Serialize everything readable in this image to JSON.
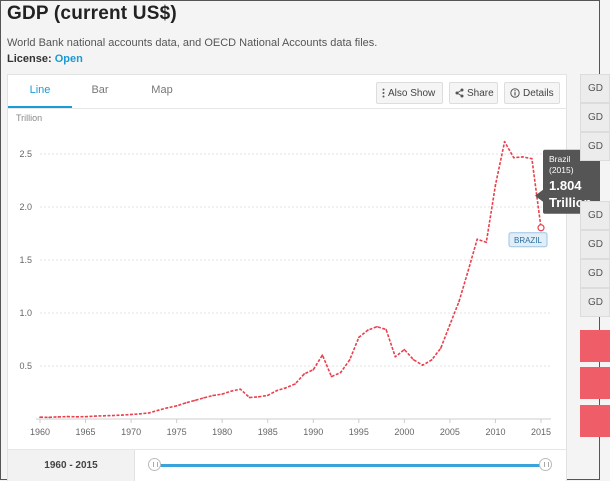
{
  "header": {
    "title": "GDP (current US$)",
    "subtitle": "World Bank national accounts data, and OECD National Accounts data files.",
    "license_label": "License: ",
    "license_value": "Open"
  },
  "tabs": [
    {
      "label": "Line",
      "active": true
    },
    {
      "label": "Bar",
      "active": false
    },
    {
      "label": "Map",
      "active": false
    }
  ],
  "toolbar": {
    "also_show": "Also Show",
    "share": "Share",
    "details": "Details"
  },
  "right_panel": {
    "items": [
      "GD",
      "GD",
      "GD",
      "GD",
      "GD",
      "GD",
      "GD"
    ]
  },
  "range": {
    "label": "1960 - 2015"
  },
  "chart_data": {
    "type": "line",
    "ylabel": "Trillion",
    "xlim": [
      1960,
      2015
    ],
    "ylim": [
      0,
      2.5
    ],
    "x_ticks": [
      1960,
      1965,
      1970,
      1975,
      1980,
      1985,
      1990,
      1995,
      2000,
      2005,
      2010,
      2015
    ],
    "y_ticks": [
      0.5,
      1.0,
      1.5,
      2.0,
      2.5
    ],
    "y_tick_labels": [
      "0.5",
      "1.0",
      "1.5",
      "2.0",
      "2.5"
    ],
    "grid": true,
    "line_color": "#e8414e",
    "series": [
      {
        "name": "BRAZIL",
        "x": [
          1960,
          1961,
          1962,
          1963,
          1964,
          1965,
          1966,
          1967,
          1968,
          1969,
          1970,
          1971,
          1972,
          1973,
          1974,
          1975,
          1976,
          1977,
          1978,
          1979,
          1980,
          1981,
          1982,
          1983,
          1984,
          1985,
          1986,
          1987,
          1988,
          1989,
          1990,
          1991,
          1992,
          1993,
          1994,
          1995,
          1996,
          1997,
          1998,
          1999,
          2000,
          2001,
          2002,
          2003,
          2004,
          2005,
          2006,
          2007,
          2008,
          2009,
          2010,
          2011,
          2012,
          2013,
          2014,
          2015
        ],
        "y": [
          0.017,
          0.016,
          0.02,
          0.023,
          0.021,
          0.022,
          0.027,
          0.03,
          0.033,
          0.037,
          0.042,
          0.049,
          0.058,
          0.083,
          0.106,
          0.124,
          0.152,
          0.175,
          0.2,
          0.222,
          0.235,
          0.263,
          0.281,
          0.203,
          0.209,
          0.223,
          0.268,
          0.294,
          0.33,
          0.425,
          0.465,
          0.603,
          0.4,
          0.438,
          0.558,
          0.77,
          0.839,
          0.871,
          0.844,
          0.587,
          0.655,
          0.559,
          0.508,
          0.558,
          0.669,
          0.891,
          1.108,
          1.397,
          1.696,
          1.667,
          2.209,
          2.616,
          2.465,
          2.473,
          2.456,
          1.804
        ]
      }
    ],
    "end_label": "BRAZIL",
    "tooltip": {
      "line1": "Brazil",
      "line2": "(2015)",
      "value": "1.804",
      "unit": "Trillion"
    }
  }
}
